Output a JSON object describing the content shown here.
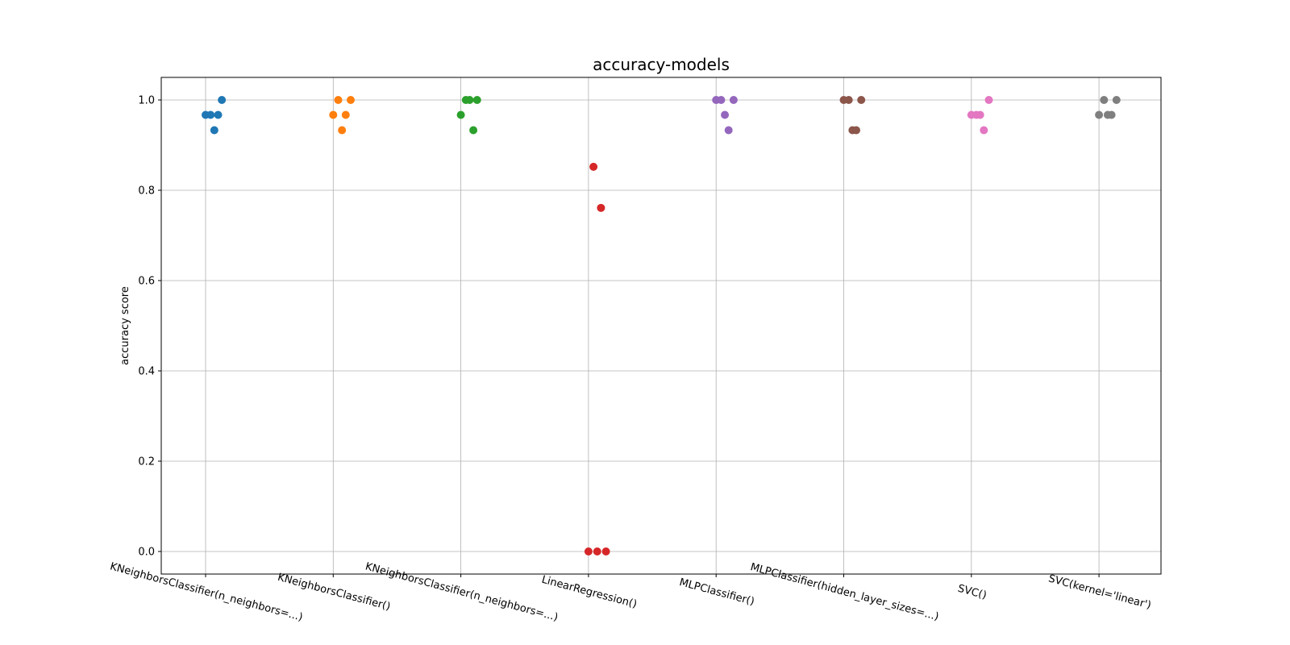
{
  "chart_data": {
    "type": "scatter",
    "title": "accuracy-models",
    "xlabel": "",
    "ylabel": "accuracy score",
    "ylim": [
      -0.05,
      1.05
    ],
    "yticks": [
      "0.0",
      "0.2",
      "0.4",
      "0.6",
      "0.8",
      "1.0"
    ],
    "grid": true,
    "categories": [
      "KNeighborsClassifier(n_neighbors=...)",
      "KNeighborsClassifier()",
      "KNeighborsClassifier(n_neighbors=...)",
      "LinearRegression()",
      "MLPClassifier()",
      "MLPClassifier(hidden_layer_sizes=...)",
      "SVC()",
      "SVC(kernel='linear')"
    ],
    "series": [
      {
        "color": "#1f77b4",
        "points": [
          [
            0.0,
            0.967
          ],
          [
            0.04,
            0.967
          ],
          [
            0.07,
            0.933
          ],
          [
            0.1,
            0.967
          ],
          [
            0.13,
            1.0
          ]
        ]
      },
      {
        "color": "#ff7f0e",
        "points": [
          [
            0.0,
            0.967
          ],
          [
            0.04,
            1.0
          ],
          [
            0.07,
            0.933
          ],
          [
            0.1,
            0.967
          ],
          [
            0.14,
            1.0
          ]
        ]
      },
      {
        "color": "#2ca02c",
        "points": [
          [
            0.0,
            0.967
          ],
          [
            0.04,
            1.0
          ],
          [
            0.07,
            1.0
          ],
          [
            0.1,
            0.933
          ],
          [
            0.13,
            1.0
          ]
        ]
      },
      {
        "color": "#d62728",
        "points": [
          [
            0.0,
            0.0
          ],
          [
            0.04,
            0.852
          ],
          [
            0.07,
            0.0
          ],
          [
            0.1,
            0.761
          ],
          [
            0.14,
            0.0
          ]
        ]
      },
      {
        "color": "#9467bd",
        "points": [
          [
            0.0,
            1.0
          ],
          [
            0.04,
            1.0
          ],
          [
            0.07,
            0.967
          ],
          [
            0.1,
            0.933
          ],
          [
            0.14,
            1.0
          ]
        ]
      },
      {
        "color": "#8c564b",
        "points": [
          [
            0.0,
            1.0
          ],
          [
            0.04,
            1.0
          ],
          [
            0.07,
            0.933
          ],
          [
            0.1,
            0.933
          ],
          [
            0.14,
            1.0
          ]
        ]
      },
      {
        "color": "#e377c2",
        "points": [
          [
            0.0,
            0.967
          ],
          [
            0.04,
            0.967
          ],
          [
            0.07,
            0.967
          ],
          [
            0.1,
            0.933
          ],
          [
            0.14,
            1.0
          ]
        ]
      },
      {
        "color": "#7f7f7f",
        "points": [
          [
            0.0,
            0.967
          ],
          [
            0.04,
            1.0
          ],
          [
            0.07,
            0.967
          ],
          [
            0.1,
            0.967
          ],
          [
            0.14,
            1.0
          ]
        ]
      }
    ]
  }
}
